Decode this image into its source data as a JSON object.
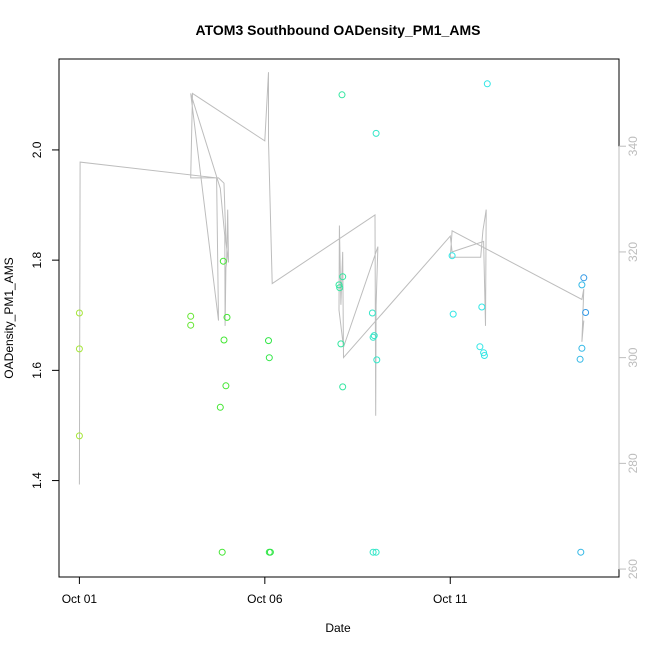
{
  "chart_data": {
    "type": "scatter",
    "title": "ATOM3 Southbound OADensity_PM1_AMS",
    "xlabel": "Date",
    "ylabel": "OADensity_PM1_AMS",
    "x_unit": "days since Oct 01",
    "xlim": [
      -0.55,
      14.55
    ],
    "ylim": [
      1.225,
      2.165
    ],
    "y2lim": [
      258.5,
      356.5
    ],
    "x_ticks": [
      {
        "value": 0,
        "label": "Oct 01"
      },
      {
        "value": 5,
        "label": "Oct 06"
      },
      {
        "value": 10,
        "label": "Oct 11"
      }
    ],
    "y_ticks": [
      {
        "value": 1.4,
        "label": "1.4"
      },
      {
        "value": 1.6,
        "label": "1.6"
      },
      {
        "value": 1.8,
        "label": "1.8"
      },
      {
        "value": 2.0,
        "label": "2.0"
      }
    ],
    "y2_ticks": [
      {
        "value": 260,
        "label": "260"
      },
      {
        "value": 280,
        "label": "280"
      },
      {
        "value": 300,
        "label": "300"
      },
      {
        "value": 320,
        "label": "320"
      },
      {
        "value": 340,
        "label": "340"
      }
    ],
    "colors": {
      "axis": "#000000",
      "secondary_axis": "#bdbdbd",
      "line": "#bdbdbd"
    },
    "points": [
      {
        "x": 0.0,
        "y": 1.704,
        "color": "#a6e639"
      },
      {
        "x": 0.0,
        "y": 1.639,
        "color": "#a6e639"
      },
      {
        "x": 0.0,
        "y": 1.481,
        "color": "#a6e639"
      },
      {
        "x": 3.0,
        "y": 1.698,
        "color": "#66e633"
      },
      {
        "x": 3.0,
        "y": 1.682,
        "color": "#66e633"
      },
      {
        "x": 3.8,
        "y": 1.533,
        "color": "#44e633"
      },
      {
        "x": 3.85,
        "y": 1.27,
        "color": "#44e633"
      },
      {
        "x": 3.88,
        "y": 1.798,
        "color": "#44e633"
      },
      {
        "x": 3.9,
        "y": 1.655,
        "color": "#44e633"
      },
      {
        "x": 3.95,
        "y": 1.572,
        "color": "#44e633"
      },
      {
        "x": 3.98,
        "y": 1.696,
        "color": "#44e633"
      },
      {
        "x": 5.1,
        "y": 1.654,
        "color": "#33e648"
      },
      {
        "x": 5.12,
        "y": 1.623,
        "color": "#33e648"
      },
      {
        "x": 5.12,
        "y": 1.27,
        "color": "#33e648"
      },
      {
        "x": 5.15,
        "y": 1.27,
        "color": "#33e648"
      },
      {
        "x": 7.0,
        "y": 1.755,
        "color": "#33e6a0"
      },
      {
        "x": 7.02,
        "y": 1.75,
        "color": "#33e6a0"
      },
      {
        "x": 7.05,
        "y": 1.648,
        "color": "#33e6a0"
      },
      {
        "x": 7.08,
        "y": 2.1,
        "color": "#33e6a0"
      },
      {
        "x": 7.1,
        "y": 1.77,
        "color": "#33e6a0"
      },
      {
        "x": 7.1,
        "y": 1.57,
        "color": "#33e6a0"
      },
      {
        "x": 7.9,
        "y": 1.704,
        "color": "#33e6c8"
      },
      {
        "x": 7.92,
        "y": 1.66,
        "color": "#33e6c8"
      },
      {
        "x": 7.95,
        "y": 1.663,
        "color": "#33e6c8"
      },
      {
        "x": 7.92,
        "y": 1.27,
        "color": "#33e6c8"
      },
      {
        "x": 8.0,
        "y": 2.03,
        "color": "#33e6c8"
      },
      {
        "x": 8.02,
        "y": 1.619,
        "color": "#33e6c8"
      },
      {
        "x": 8.0,
        "y": 1.27,
        "color": "#33e6c8"
      },
      {
        "x": 10.05,
        "y": 1.808,
        "color": "#33e6e6"
      },
      {
        "x": 10.08,
        "y": 1.702,
        "color": "#33e6e6"
      },
      {
        "x": 10.8,
        "y": 1.643,
        "color": "#33e6e6"
      },
      {
        "x": 10.85,
        "y": 1.715,
        "color": "#33e6e6"
      },
      {
        "x": 10.9,
        "y": 1.632,
        "color": "#33e6e6"
      },
      {
        "x": 10.92,
        "y": 1.627,
        "color": "#33e6e6"
      },
      {
        "x": 11.0,
        "y": 2.12,
        "color": "#33e6e6"
      },
      {
        "x": 13.5,
        "y": 1.62,
        "color": "#33b8e6"
      },
      {
        "x": 13.52,
        "y": 1.27,
        "color": "#33b8e6"
      },
      {
        "x": 13.55,
        "y": 1.64,
        "color": "#33b8e6"
      },
      {
        "x": 13.55,
        "y": 1.755,
        "color": "#33b8e6"
      },
      {
        "x": 13.6,
        "y": 1.768,
        "color": "#3399e6"
      },
      {
        "x": 13.65,
        "y": 1.705,
        "color": "#3399e6"
      }
    ],
    "line_y2": [
      [
        0.0,
        276
      ],
      [
        0.02,
        337
      ],
      [
        3.7,
        334
      ],
      [
        3.75,
        307
      ],
      [
        3.0,
        350
      ],
      [
        3.8,
        332
      ],
      [
        3.92,
        323
      ],
      [
        3.93,
        306
      ],
      [
        3.95,
        317
      ],
      [
        3.97,
        318
      ],
      [
        4.0,
        328
      ],
      [
        4.02,
        318
      ],
      [
        3.95,
        322
      ],
      [
        3.9,
        333
      ],
      [
        3.75,
        334
      ],
      [
        3.0,
        334
      ],
      [
        3.05,
        350
      ],
      [
        5.0,
        341
      ],
      [
        5.1,
        354
      ],
      [
        5.1,
        341
      ],
      [
        5.2,
        314
      ],
      [
        7.97,
        327
      ],
      [
        7.99,
        289
      ],
      [
        8.0,
        310
      ],
      [
        8.05,
        321
      ],
      [
        7.12,
        302
      ],
      [
        7.0,
        309
      ],
      [
        7.01,
        325
      ],
      [
        7.05,
        310
      ],
      [
        7.1,
        320
      ],
      [
        7.12,
        300
      ],
      [
        10.0,
        323
      ],
      [
        10.05,
        320
      ],
      [
        10.9,
        322
      ],
      [
        10.95,
        306
      ],
      [
        10.97,
        328
      ],
      [
        10.88,
        324
      ],
      [
        10.82,
        319
      ],
      [
        10.0,
        319
      ],
      [
        10.05,
        324
      ],
      [
        13.55,
        311
      ],
      [
        13.6,
        313
      ],
      [
        13.55,
        303
      ],
      [
        13.6,
        307
      ]
    ]
  }
}
